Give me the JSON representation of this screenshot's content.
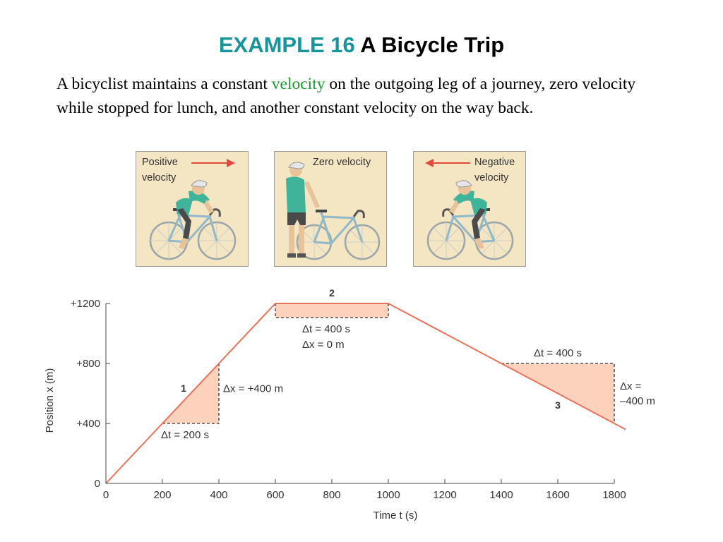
{
  "title": {
    "prefix": "EXAMPLE 16",
    "main": "A Bicycle Trip"
  },
  "intro": {
    "part1": "A bicyclist maintains a constant ",
    "highlight": "velocity",
    "part2": " on the outgoing leg of a journey, zero velocity while stopped for lunch, and another constant velocity on the way back."
  },
  "panels": [
    {
      "line1": "Positive",
      "line2": "velocity"
    },
    {
      "line1": "Zero velocity",
      "line2": ""
    },
    {
      "line1": "Negative",
      "line2": "velocity"
    }
  ],
  "colors": {
    "line": "#e8735a",
    "fill": "#fcd2bd",
    "arrow": "#e14b3b",
    "title_accent": "#17949c",
    "velocity_word": "#1a9a2c"
  },
  "chart_data": {
    "type": "line",
    "xlabel": "Time t (s)",
    "ylabel": "Position x (m)",
    "xlim": [
      0,
      1800
    ],
    "ylim": [
      0,
      1200
    ],
    "xticks": [
      0,
      200,
      400,
      600,
      800,
      1000,
      1200,
      1400,
      1600,
      1800
    ],
    "yticks": [
      0,
      400,
      800,
      1200
    ],
    "ytick_labels": [
      "0",
      "+400",
      "+800",
      "+1200"
    ],
    "series": [
      {
        "x": [
          0,
          600,
          1000,
          1840
        ],
        "y": [
          0,
          1200,
          1200,
          360
        ]
      }
    ],
    "segments": [
      {
        "number": "1",
        "t_start": 200,
        "t_end": 400,
        "x_start": 400,
        "x_end": 800,
        "dt_label": "Δt = 200 s",
        "dx_label": "Δx = +400 m"
      },
      {
        "number": "2",
        "t_start": 600,
        "t_end": 1000,
        "x_start": 1200,
        "x_end": 1200,
        "dt_label": "Δt = 400 s",
        "dx_label": "Δx = 0 m"
      },
      {
        "number": "3",
        "t_start": 1400,
        "t_end": 1800,
        "x_start": 800,
        "x_end": 400,
        "dt_label": "Δt = 400 s",
        "dx_label_line1": "Δx =",
        "dx_label_line2": "–400 m"
      }
    ]
  }
}
